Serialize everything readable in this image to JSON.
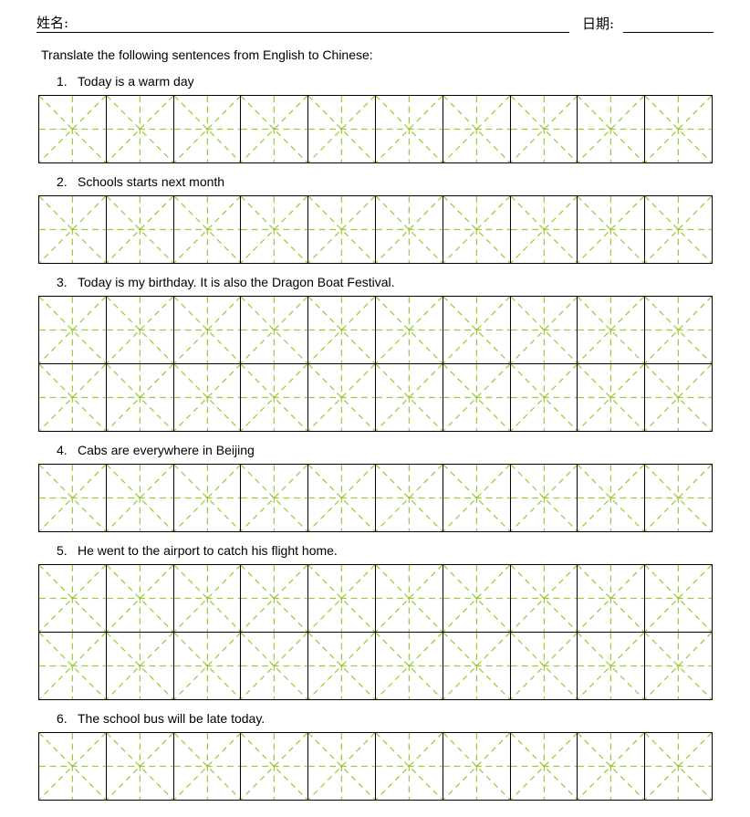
{
  "header": {
    "name_label": "姓名:",
    "date_label": "日期:"
  },
  "instruction": "Translate the following sentences from English to Chinese:",
  "sentences": [
    {
      "number": "1.",
      "text": "Today is a warm day",
      "grid_rows": 1
    },
    {
      "number": "2.",
      "text": "Schools starts next month",
      "grid_rows": 1
    },
    {
      "number": "3.",
      "text": "Today is my birthday. It is also the Dragon Boat Festival.",
      "grid_rows": 2
    },
    {
      "number": "4.",
      "text": "Cabs are everywhere in Beijing",
      "grid_rows": 1
    },
    {
      "number": "5.",
      "text": "He went to the airport to catch his flight home.",
      "grid_rows": 2
    },
    {
      "number": "6.",
      "text": "The school bus will be late today.",
      "grid_rows": 1
    }
  ],
  "grid": {
    "columns": 10,
    "pattern": "mi-zi-ge",
    "guide_color": "#9acc3c",
    "border_color": "#000000"
  }
}
